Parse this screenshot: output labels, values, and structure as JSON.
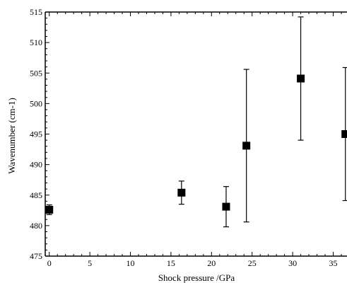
{
  "chart_data": {
    "type": "scatter",
    "xlabel": "Shock pressure /GPa",
    "ylabel": "Wavenumber (cm-1)",
    "xlim": [
      -0.5,
      36.7
    ],
    "ylim": [
      475,
      515
    ],
    "x_ticks": [
      0,
      5,
      10,
      15,
      20,
      25,
      30,
      35
    ],
    "y_ticks": [
      475,
      480,
      485,
      490,
      495,
      500,
      505,
      510,
      515
    ],
    "x_tick_labels": [
      "0",
      "5",
      "10",
      "15",
      "20",
      "25",
      "30",
      "35"
    ],
    "y_tick_labels": [
      "475",
      "480",
      "485",
      "490",
      "495",
      "500",
      "505",
      "510",
      "515"
    ],
    "grid": false,
    "marker": "square",
    "color": "#000000",
    "points": [
      {
        "x": 0.0,
        "y": 482.6,
        "err": 0.8
      },
      {
        "x": 16.3,
        "y": 485.4,
        "err": 1.9
      },
      {
        "x": 21.8,
        "y": 483.1,
        "err": 3.3
      },
      {
        "x": 24.3,
        "y": 493.1,
        "err": 12.5
      },
      {
        "x": 31.0,
        "y": 504.1,
        "err": 10.1
      },
      {
        "x": 36.5,
        "y": 495.0,
        "err": 10.9
      }
    ]
  }
}
